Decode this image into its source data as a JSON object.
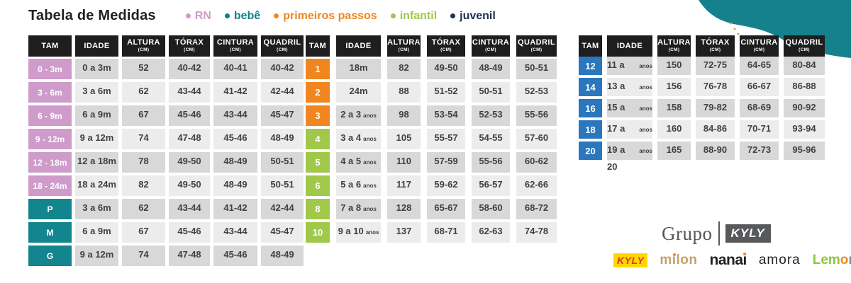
{
  "title": "Tabela de Medidas",
  "legend": [
    {
      "label": "RN",
      "color": "#cf9bcb"
    },
    {
      "label": "bebê",
      "color": "#0f7f8c"
    },
    {
      "label": "primeiros passos",
      "color": "#f0861f"
    },
    {
      "label": "infantil",
      "color": "#a0c84b"
    },
    {
      "label": "juvenil",
      "color": "#20304f"
    }
  ],
  "columns": [
    {
      "label": "TAM",
      "unit": ""
    },
    {
      "label": "IDADE",
      "unit": ""
    },
    {
      "label": "ALTURA",
      "unit": "(CM)"
    },
    {
      "label": "TÓRAX",
      "unit": "(CM)"
    },
    {
      "label": "CINTURA",
      "unit": "(CM)"
    },
    {
      "label": "QUADRIL",
      "unit": "(CM)"
    }
  ],
  "chart_data": [
    {
      "type": "table",
      "name": "rn-bebe",
      "rows": [
        {
          "tam": "0 - 3m",
          "group": "pink",
          "idade": "0 a 3m",
          "idade_suffix": "",
          "altura": "52",
          "torax": "40-42",
          "cintura": "40-41",
          "quadril": "40-42"
        },
        {
          "tam": "3 - 6m",
          "group": "pink",
          "idade": "3 a 6m",
          "idade_suffix": "",
          "altura": "62",
          "torax": "43-44",
          "cintura": "41-42",
          "quadril": "42-44"
        },
        {
          "tam": "6 - 9m",
          "group": "pink",
          "idade": "6 a 9m",
          "idade_suffix": "",
          "altura": "67",
          "torax": "45-46",
          "cintura": "43-44",
          "quadril": "45-47"
        },
        {
          "tam": "9 - 12m",
          "group": "pink",
          "idade": "9 a 12m",
          "idade_suffix": "",
          "altura": "74",
          "torax": "47-48",
          "cintura": "45-46",
          "quadril": "48-49"
        },
        {
          "tam": "12 - 18m",
          "group": "pink",
          "idade": "12 a 18m",
          "idade_suffix": "",
          "altura": "78",
          "torax": "49-50",
          "cintura": "48-49",
          "quadril": "50-51"
        },
        {
          "tam": "18 - 24m",
          "group": "pink",
          "idade": "18 a 24m",
          "idade_suffix": "",
          "altura": "82",
          "torax": "49-50",
          "cintura": "48-49",
          "quadril": "50-51"
        },
        {
          "tam": "P",
          "group": "teal",
          "idade": "3 a 6m",
          "idade_suffix": "",
          "altura": "62",
          "torax": "43-44",
          "cintura": "41-42",
          "quadril": "42-44"
        },
        {
          "tam": "M",
          "group": "teal",
          "idade": "6 a 9m",
          "idade_suffix": "",
          "altura": "67",
          "torax": "45-46",
          "cintura": "43-44",
          "quadril": "45-47"
        },
        {
          "tam": "G",
          "group": "teal",
          "idade": "9 a 12m",
          "idade_suffix": "",
          "altura": "74",
          "torax": "47-48",
          "cintura": "45-46",
          "quadril": "48-49"
        }
      ]
    },
    {
      "type": "table",
      "name": "primeiros-passos-infantil",
      "rows": [
        {
          "tam": "1",
          "group": "orange",
          "idade": "18m",
          "idade_suffix": "",
          "altura": "82",
          "torax": "49-50",
          "cintura": "48-49",
          "quadril": "50-51"
        },
        {
          "tam": "2",
          "group": "orange",
          "idade": "24m",
          "idade_suffix": "",
          "altura": "88",
          "torax": "51-52",
          "cintura": "50-51",
          "quadril": "52-53"
        },
        {
          "tam": "3",
          "group": "orange",
          "idade": "2 a 3",
          "idade_suffix": "anos",
          "altura": "98",
          "torax": "53-54",
          "cintura": "52-53",
          "quadril": "55-56"
        },
        {
          "tam": "4",
          "group": "green",
          "idade": "3 a 4",
          "idade_suffix": "anos",
          "altura": "105",
          "torax": "55-57",
          "cintura": "54-55",
          "quadril": "57-60"
        },
        {
          "tam": "5",
          "group": "green",
          "idade": "4 a 5",
          "idade_suffix": "anos",
          "altura": "110",
          "torax": "57-59",
          "cintura": "55-56",
          "quadril": "60-62"
        },
        {
          "tam": "6",
          "group": "green",
          "idade": "5 a 6",
          "idade_suffix": "anos",
          "altura": "117",
          "torax": "59-62",
          "cintura": "56-57",
          "quadril": "62-66"
        },
        {
          "tam": "8",
          "group": "green",
          "idade": "7 a 8",
          "idade_suffix": "anos",
          "altura": "128",
          "torax": "65-67",
          "cintura": "58-60",
          "quadril": "68-72"
        },
        {
          "tam": "10",
          "group": "green",
          "idade": "9 a 10",
          "idade_suffix": "anos",
          "altura": "137",
          "torax": "68-71",
          "cintura": "62-63",
          "quadril": "74-78"
        }
      ]
    },
    {
      "type": "table",
      "name": "juvenil",
      "rows": [
        {
          "tam": "12",
          "group": "blue",
          "idade": "11 a 12",
          "idade_suffix": "anos",
          "altura": "150",
          "torax": "72-75",
          "cintura": "64-65",
          "quadril": "80-84"
        },
        {
          "tam": "14",
          "group": "blue",
          "idade": "13 a 14",
          "idade_suffix": "anos",
          "altura": "156",
          "torax": "76-78",
          "cintura": "66-67",
          "quadril": "86-88"
        },
        {
          "tam": "16",
          "group": "blue",
          "idade": "15 a 16",
          "idade_suffix": "anos",
          "altura": "158",
          "torax": "79-82",
          "cintura": "68-69",
          "quadril": "90-92"
        },
        {
          "tam": "18",
          "group": "blue",
          "idade": "17 a 18",
          "idade_suffix": "anos",
          "altura": "160",
          "torax": "84-86",
          "cintura": "70-71",
          "quadril": "93-94"
        },
        {
          "tam": "20",
          "group": "blue",
          "idade": "19 a 20",
          "idade_suffix": "anos",
          "altura": "165",
          "torax": "88-90",
          "cintura": "72-73",
          "quadril": "95-96"
        }
      ]
    }
  ],
  "colors": {
    "pink": "#cf9bcb",
    "teal": "#12858f",
    "orange": "#f0861f",
    "green": "#a0c84b",
    "blue": "#2a77be",
    "blob": "#15818d",
    "header_bg": "#1e1e1e",
    "row_dark": "#d8d8d8",
    "row_light": "#ececec",
    "dots": "#dba15e"
  },
  "footer": {
    "grupo_label": "Grupo",
    "grupo_brand": "KYLY",
    "brands": [
      {
        "id": "kyly",
        "color": "#e53027",
        "bg": "#ffd800",
        "segments": [
          {
            "text": "KYLY"
          }
        ]
      },
      {
        "id": "milon",
        "color": "#c5a269",
        "segments": [
          {
            "text": "m"
          },
          {
            "text": "i",
            "dot": "#f28b1f"
          },
          {
            "text": "lon"
          }
        ]
      },
      {
        "id": "nanai",
        "color": "#231f20",
        "segments": [
          {
            "text": "nana"
          },
          {
            "text": "i",
            "dot": "#f28b1f"
          }
        ]
      },
      {
        "id": "amora",
        "color": "#231f20",
        "segments": [
          {
            "text": "amora"
          }
        ]
      },
      {
        "id": "lemon",
        "color": "#8cc63e",
        "segments": [
          {
            "text": "Lem",
            "color": "#8cc63e"
          },
          {
            "text": "o",
            "color": "#f28b1f"
          },
          {
            "text": "n",
            "color": "#898c8e"
          }
        ]
      }
    ]
  }
}
